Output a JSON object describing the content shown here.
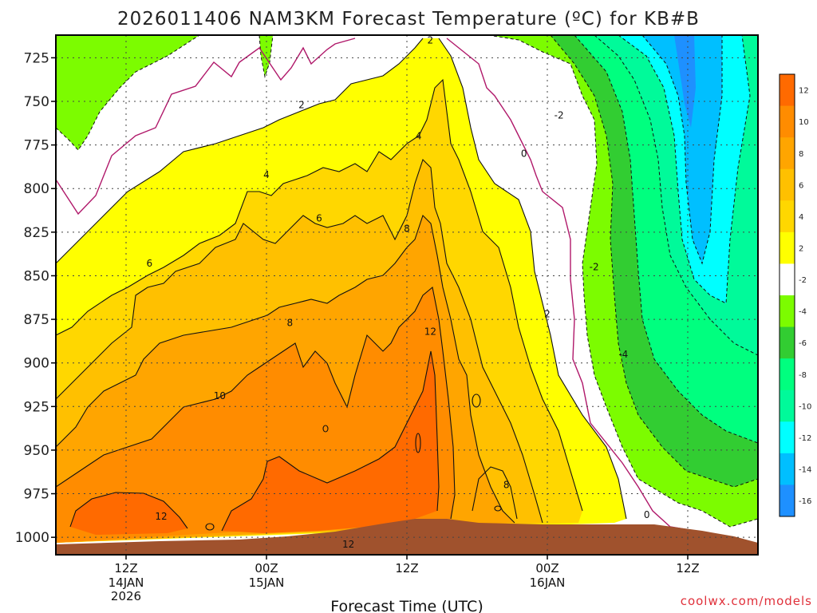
{
  "page": {
    "title": "2026011406 NAM3KM Forecast Temperature (ºC) for KB#B",
    "credit": "coolwx.com/models"
  },
  "chart_data": {
    "type": "heatmap",
    "title": "2026011406 NAM3KM Forecast Temperature (ºC) for KB#B",
    "xlabel": "Forecast Time (UTC)",
    "ylabel": "",
    "x_ticks": [
      {
        "label": "12Z",
        "sub": [
          "14JAN",
          "2026"
        ],
        "hours": 6
      },
      {
        "label": "00Z",
        "sub": [
          "15JAN"
        ],
        "hours": 18
      },
      {
        "label": "12Z",
        "sub": [],
        "hours": 30
      },
      {
        "label": "00Z",
        "sub": [
          "16JAN"
        ],
        "hours": 42
      },
      {
        "label": "12Z",
        "sub": [],
        "hours": 54
      }
    ],
    "xlim_hours": [
      0,
      60
    ],
    "y_ticks": [
      725,
      750,
      775,
      800,
      825,
      850,
      875,
      900,
      925,
      950,
      975,
      1000
    ],
    "ylim_hPa": [
      1010,
      712
    ],
    "colorbar": {
      "labels": [
        "12",
        "10",
        "8",
        "6",
        "4",
        "2",
        "-2",
        "-4",
        "-6",
        "-8",
        "-10",
        "-12",
        "-14",
        "-16"
      ],
      "colors": [
        "#ff6a00",
        "#ff8c00",
        "#ffa500",
        "#ffc000",
        "#ffd700",
        "#ffff00",
        "#ffffff",
        "#7cfc00",
        "#32cd32",
        "#00ff7f",
        "#00fa9a",
        "#00ffff",
        "#00bfff",
        "#1e90ff"
      ]
    },
    "contour_labels": [
      {
        "text": "2",
        "hour": 32.0,
        "p": 715
      },
      {
        "text": "2",
        "hour": 21.0,
        "p": 752
      },
      {
        "text": "4",
        "hour": 31.0,
        "p": 770
      },
      {
        "text": "4",
        "hour": 18.0,
        "p": 792
      },
      {
        "text": "6",
        "hour": 22.5,
        "p": 817
      },
      {
        "text": "6",
        "hour": 8.0,
        "p": 843
      },
      {
        "text": "8",
        "hour": 30.0,
        "p": 823
      },
      {
        "text": "8",
        "hour": 20.0,
        "p": 877
      },
      {
        "text": "12",
        "hour": 32.0,
        "p": 882
      },
      {
        "text": "10",
        "hour": 14.0,
        "p": 919
      },
      {
        "text": "12",
        "hour": 9.0,
        "p": 988
      },
      {
        "text": "12",
        "hour": 25.0,
        "p": 1004
      },
      {
        "text": "8",
        "hour": 38.5,
        "p": 970
      },
      {
        "text": "2",
        "hour": 42.0,
        "p": 872
      },
      {
        "text": "0",
        "hour": 40.0,
        "p": 780
      },
      {
        "text": "-2",
        "hour": 43.0,
        "p": 758
      },
      {
        "text": "-2",
        "hour": 46.0,
        "p": 845
      },
      {
        "text": "-4",
        "hour": 48.5,
        "p": 895
      },
      {
        "text": "0",
        "hour": 50.5,
        "p": 987
      }
    ]
  }
}
